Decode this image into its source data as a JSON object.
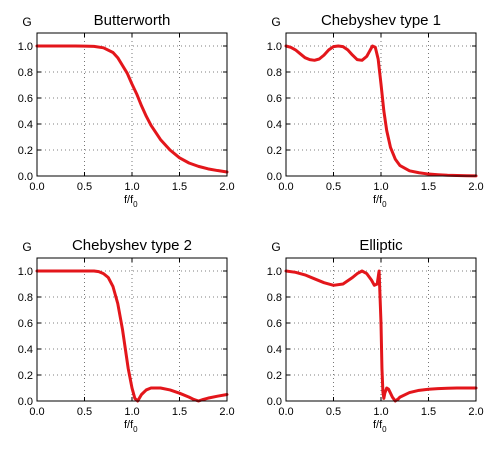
{
  "chart_data": [
    {
      "type": "line",
      "title": "Butterworth",
      "ylabel": "G",
      "xlabel": "f/f",
      "xlabel_sub": "0",
      "xlim": [
        0,
        2
      ],
      "ylim": [
        0,
        1.1
      ],
      "xticks": [
        "0.0",
        "0.5",
        "1.0",
        "1.5",
        "2.0"
      ],
      "yticks": [
        "0.0",
        "0.2",
        "0.4",
        "0.6",
        "0.8",
        "1.0"
      ],
      "grid": true,
      "color": "#e3161b",
      "x": [
        0.0,
        0.2,
        0.4,
        0.5,
        0.6,
        0.7,
        0.8,
        0.85,
        0.9,
        0.95,
        1.0,
        1.05,
        1.1,
        1.15,
        1.2,
        1.3,
        1.4,
        1.5,
        1.6,
        1.7,
        1.8,
        1.9,
        2.0
      ],
      "y": [
        1.0,
        1.0,
        1.0,
        0.999,
        0.997,
        0.986,
        0.95,
        0.91,
        0.85,
        0.79,
        0.707,
        0.63,
        0.54,
        0.46,
        0.39,
        0.28,
        0.2,
        0.14,
        0.1,
        0.074,
        0.055,
        0.042,
        0.031
      ]
    },
    {
      "type": "line",
      "title": "Chebyshev type 1",
      "ylabel": "G",
      "xlabel": "f/f",
      "xlabel_sub": "0",
      "xlim": [
        0,
        2
      ],
      "ylim": [
        0,
        1.1
      ],
      "xticks": [
        "0.0",
        "0.5",
        "1.0",
        "1.5",
        "2.0"
      ],
      "yticks": [
        "0.0",
        "0.2",
        "0.4",
        "0.6",
        "0.8",
        "1.0"
      ],
      "grid": true,
      "color": "#e3161b",
      "x": [
        0.0,
        0.05,
        0.1,
        0.15,
        0.2,
        0.25,
        0.3,
        0.35,
        0.4,
        0.45,
        0.5,
        0.55,
        0.6,
        0.65,
        0.7,
        0.75,
        0.8,
        0.85,
        0.88,
        0.91,
        0.94,
        0.97,
        1.0,
        1.03,
        1.06,
        1.1,
        1.15,
        1.2,
        1.3,
        1.4,
        1.5,
        1.6,
        1.7,
        1.8,
        1.9,
        2.0
      ],
      "y": [
        1.0,
        0.99,
        0.97,
        0.94,
        0.91,
        0.895,
        0.89,
        0.9,
        0.93,
        0.97,
        0.995,
        1.0,
        0.995,
        0.97,
        0.93,
        0.895,
        0.89,
        0.92,
        0.96,
        1.0,
        0.99,
        0.9,
        0.707,
        0.5,
        0.35,
        0.22,
        0.13,
        0.08,
        0.04,
        0.025,
        0.015,
        0.01,
        0.006,
        0.004,
        0.002,
        0.001
      ]
    },
    {
      "type": "line",
      "title": "Chebyshev type 2",
      "ylabel": "G",
      "xlabel": "f/f",
      "xlabel_sub": "0",
      "xlim": [
        0,
        2
      ],
      "ylim": [
        0,
        1.1
      ],
      "xticks": [
        "0.0",
        "0.5",
        "1.0",
        "1.5",
        "2.0"
      ],
      "yticks": [
        "0.0",
        "0.2",
        "0.4",
        "0.6",
        "0.8",
        "1.0"
      ],
      "grid": true,
      "color": "#e3161b",
      "x": [
        0.0,
        0.2,
        0.4,
        0.5,
        0.6,
        0.65,
        0.7,
        0.75,
        0.8,
        0.85,
        0.9,
        0.93,
        0.96,
        1.0,
        1.03,
        1.06,
        1.1,
        1.15,
        1.2,
        1.3,
        1.4,
        1.5,
        1.6,
        1.65,
        1.7,
        1.75,
        1.8,
        1.9,
        2.0
      ],
      "y": [
        1.0,
        1.0,
        1.0,
        1.0,
        1.0,
        0.995,
        0.98,
        0.95,
        0.88,
        0.75,
        0.55,
        0.4,
        0.25,
        0.1,
        0.02,
        0.0,
        0.05,
        0.085,
        0.1,
        0.1,
        0.085,
        0.06,
        0.03,
        0.012,
        0.0,
        0.012,
        0.022,
        0.037,
        0.05
      ]
    },
    {
      "type": "line",
      "title": "Elliptic",
      "ylabel": "G",
      "xlabel": "f/f",
      "xlabel_sub": "0",
      "xlim": [
        0,
        2
      ],
      "ylim": [
        0,
        1.1
      ],
      "xticks": [
        "0.0",
        "0.5",
        "1.0",
        "1.5",
        "2.0"
      ],
      "yticks": [
        "0.0",
        "0.2",
        "0.4",
        "0.6",
        "0.8",
        "1.0"
      ],
      "grid": true,
      "color": "#e3161b",
      "x": [
        0.0,
        0.1,
        0.2,
        0.3,
        0.4,
        0.5,
        0.6,
        0.7,
        0.75,
        0.8,
        0.85,
        0.9,
        0.93,
        0.96,
        0.98,
        1.0,
        1.01,
        1.02,
        1.03,
        1.04,
        1.06,
        1.08,
        1.1,
        1.12,
        1.15,
        1.18,
        1.2,
        1.3,
        1.4,
        1.5,
        1.6,
        1.7,
        1.8,
        1.9,
        2.0
      ],
      "y": [
        1.0,
        0.99,
        0.97,
        0.94,
        0.91,
        0.89,
        0.9,
        0.95,
        0.98,
        1.0,
        0.98,
        0.93,
        0.89,
        0.9,
        1.0,
        0.6,
        0.25,
        0.07,
        0.02,
        0.06,
        0.1,
        0.09,
        0.06,
        0.03,
        0.0,
        0.015,
        0.03,
        0.065,
        0.082,
        0.09,
        0.095,
        0.098,
        0.1,
        0.1,
        0.1
      ]
    }
  ]
}
